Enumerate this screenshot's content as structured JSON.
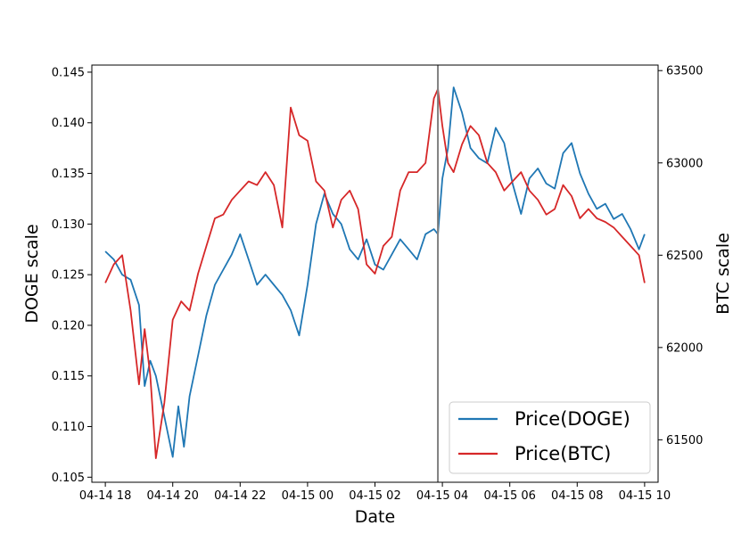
{
  "chart_data": {
    "type": "line",
    "title": "",
    "xlabel": "Date",
    "ylabel_left": "DOGE scale",
    "ylabel_right": "BTC scale",
    "x_ticks": [
      "04-14 18",
      "04-14 20",
      "04-14 22",
      "04-15 00",
      "04-15 02",
      "04-15 04",
      "04-15 06",
      "04-15 08",
      "04-15 10"
    ],
    "y_left_ticks": [
      0.105,
      0.11,
      0.115,
      0.12,
      0.125,
      0.13,
      0.135,
      0.14,
      0.145
    ],
    "y_left_tick_labels": [
      "0.105",
      "0.110",
      "0.115",
      "0.120",
      "0.125",
      "0.130",
      "0.135",
      "0.140",
      "0.145"
    ],
    "y_right_ticks": [
      61500,
      62000,
      62500,
      63000,
      63500
    ],
    "y_right_tick_labels": [
      "61500",
      "62000",
      "62500",
      "63000",
      "63500"
    ],
    "xlim": [
      "04-14 17:36",
      "04-15 10:24"
    ],
    "ylim_left": [
      0.1045,
      0.1457
    ],
    "ylim_right": [
      61270,
      63530
    ],
    "grid": false,
    "legend_position": "lower-right",
    "marker_line": "04-15 03:52",
    "series": [
      {
        "name": "Price(DOGE)",
        "axis": "left",
        "color": "#1f77b4",
        "x": [
          "04-14 18:00",
          "04-14 18:15",
          "04-14 18:30",
          "04-14 18:45",
          "04-14 19:00",
          "04-14 19:10",
          "04-14 19:20",
          "04-14 19:30",
          "04-14 19:45",
          "04-14 20:00",
          "04-14 20:10",
          "04-14 20:20",
          "04-14 20:30",
          "04-14 20:45",
          "04-14 21:00",
          "04-14 21:15",
          "04-14 21:30",
          "04-14 21:45",
          "04-14 22:00",
          "04-14 22:15",
          "04-14 22:30",
          "04-14 22:45",
          "04-14 23:00",
          "04-14 23:15",
          "04-14 23:30",
          "04-14 23:45",
          "04-15 00:00",
          "04-15 00:15",
          "04-15 00:30",
          "04-15 00:45",
          "04-15 01:00",
          "04-15 01:15",
          "04-15 01:30",
          "04-15 01:45",
          "04-15 02:00",
          "04-15 02:15",
          "04-15 02:30",
          "04-15 02:45",
          "04-15 03:00",
          "04-15 03:15",
          "04-15 03:30",
          "04-15 03:45",
          "04-15 03:52",
          "04-15 04:00",
          "04-15 04:10",
          "04-15 04:20",
          "04-15 04:35",
          "04-15 04:50",
          "04-15 05:05",
          "04-15 05:20",
          "04-15 05:35",
          "04-15 05:50",
          "04-15 06:05",
          "04-15 06:20",
          "04-15 06:35",
          "04-15 06:50",
          "04-15 07:05",
          "04-15 07:20",
          "04-15 07:35",
          "04-15 07:50",
          "04-15 08:05",
          "04-15 08:20",
          "04-15 08:35",
          "04-15 08:50",
          "04-15 09:05",
          "04-15 09:20",
          "04-15 09:35",
          "04-15 09:50",
          "04-15 10:00"
        ],
        "values": [
          0.1273,
          0.1265,
          0.125,
          0.1245,
          0.122,
          0.114,
          0.1165,
          0.115,
          0.111,
          0.107,
          0.112,
          0.108,
          0.113,
          0.117,
          0.121,
          0.124,
          0.1255,
          0.127,
          0.129,
          0.1265,
          0.124,
          0.125,
          0.124,
          0.123,
          0.1215,
          0.119,
          0.124,
          0.13,
          0.133,
          0.131,
          0.13,
          0.1275,
          0.1265,
          0.1285,
          0.126,
          0.1255,
          0.127,
          0.1285,
          0.1275,
          0.1265,
          0.129,
          0.1295,
          0.129,
          0.1345,
          0.1375,
          0.1435,
          0.141,
          0.1375,
          0.1365,
          0.136,
          0.1395,
          0.138,
          0.134,
          0.131,
          0.1345,
          0.1355,
          0.134,
          0.1335,
          0.137,
          0.138,
          0.135,
          0.133,
          0.1315,
          0.132,
          0.1305,
          0.131,
          0.1295,
          0.1275,
          0.129
        ]
      },
      {
        "name": "Price(BTC)",
        "axis": "right",
        "color": "#d62728",
        "x": [
          "04-14 18:00",
          "04-14 18:15",
          "04-14 18:30",
          "04-14 18:45",
          "04-14 19:00",
          "04-14 19:10",
          "04-14 19:20",
          "04-14 19:30",
          "04-14 19:45",
          "04-14 20:00",
          "04-14 20:15",
          "04-14 20:30",
          "04-14 20:45",
          "04-14 21:00",
          "04-14 21:15",
          "04-14 21:30",
          "04-14 21:45",
          "04-14 22:00",
          "04-14 22:15",
          "04-14 22:30",
          "04-14 22:45",
          "04-14 23:00",
          "04-14 23:15",
          "04-14 23:30",
          "04-14 23:45",
          "04-15 00:00",
          "04-15 00:15",
          "04-15 00:30",
          "04-15 00:45",
          "04-15 01:00",
          "04-15 01:15",
          "04-15 01:30",
          "04-15 01:45",
          "04-15 02:00",
          "04-15 02:15",
          "04-15 02:30",
          "04-15 02:45",
          "04-15 03:00",
          "04-15 03:15",
          "04-15 03:30",
          "04-15 03:45",
          "04-15 03:52",
          "04-15 04:00",
          "04-15 04:10",
          "04-15 04:20",
          "04-15 04:35",
          "04-15 04:50",
          "04-15 05:05",
          "04-15 05:20",
          "04-15 05:35",
          "04-15 05:50",
          "04-15 06:05",
          "04-15 06:20",
          "04-15 06:35",
          "04-15 06:50",
          "04-15 07:05",
          "04-15 07:20",
          "04-15 07:35",
          "04-15 07:50",
          "04-15 08:05",
          "04-15 08:20",
          "04-15 08:35",
          "04-15 08:50",
          "04-15 09:05",
          "04-15 09:20",
          "04-15 09:35",
          "04-15 09:50",
          "04-15 10:00"
        ],
        "values": [
          62350,
          62450,
          62500,
          62200,
          61800,
          62100,
          61850,
          61400,
          61700,
          62150,
          62250,
          62200,
          62400,
          62550,
          62700,
          62720,
          62800,
          62850,
          62900,
          62880,
          62950,
          62880,
          62650,
          63300,
          63150,
          63120,
          62900,
          62850,
          62650,
          62800,
          62850,
          62750,
          62450,
          62400,
          62550,
          62600,
          62850,
          62950,
          62950,
          63000,
          63350,
          63400,
          63200,
          63000,
          62950,
          63100,
          63200,
          63150,
          63000,
          62950,
          62850,
          62900,
          62950,
          62850,
          62800,
          62720,
          62750,
          62880,
          62820,
          62700,
          62750,
          62700,
          62680,
          62650,
          62600,
          62550,
          62500,
          62350
        ]
      }
    ]
  }
}
